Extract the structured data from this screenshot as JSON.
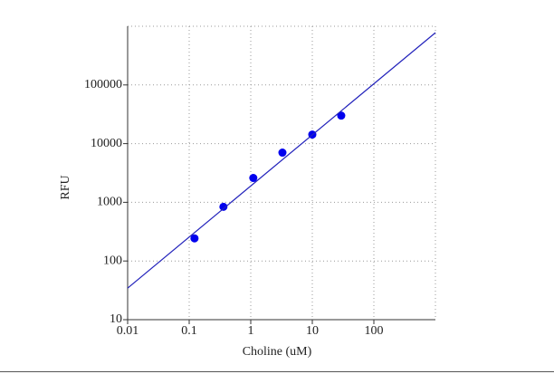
{
  "chart_data": {
    "type": "scatter",
    "x_label": "Choline (uM)",
    "y_label": "RFU",
    "xscale": "log",
    "yscale": "log",
    "xlim": [
      0.01,
      1000
    ],
    "ylim": [
      10,
      1000000
    ],
    "xticks": [
      0.01,
      0.1,
      1,
      10,
      100
    ],
    "yticks": [
      10,
      100,
      1000,
      10000,
      100000
    ],
    "grid": true,
    "series": [
      {
        "mode": "markers",
        "color": "#0000ee",
        "x": [
          0.122,
          0.36,
          1.1,
          3.27,
          10,
          29.5
        ],
        "values": [
          243,
          838,
          2600,
          7020,
          14260,
          30000
        ]
      },
      {
        "mode": "lines",
        "color": "#2222bb",
        "x": [
          0.01,
          1000
        ],
        "values": [
          34.5,
          776000
        ]
      }
    ]
  }
}
